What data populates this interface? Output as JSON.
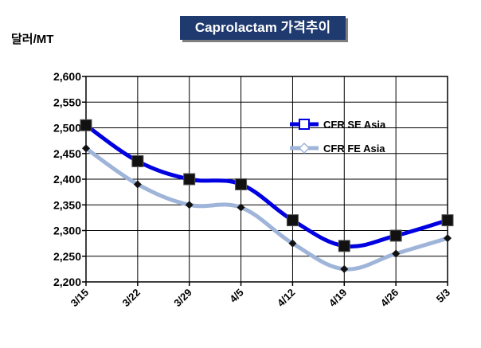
{
  "chart_data": {
    "type": "line",
    "title": "Caprolactam 가격추이",
    "ylabel": "달러/MT",
    "categories": [
      "3/15",
      "3/22",
      "3/29",
      "4/5",
      "4/12",
      "4/19",
      "4/26",
      "5/3"
    ],
    "ylim": [
      2200,
      2600
    ],
    "yticks": [
      2200,
      2250,
      2300,
      2350,
      2400,
      2450,
      2500,
      2550,
      2600
    ],
    "ytick_labels": [
      "2,200",
      "2,250",
      "2,300",
      "2,350",
      "2,400",
      "2,450",
      "2,500",
      "2,550",
      "2,600"
    ],
    "grid": true,
    "legend_position": "top-right",
    "series": [
      {
        "name": "CFR SE Asia",
        "values": [
          2505,
          2435,
          2400,
          2390,
          2320,
          2270,
          2290,
          2320
        ],
        "color": "#0000e0"
      },
      {
        "name": "CFR FE Asia",
        "values": [
          2460,
          2390,
          2350,
          2345,
          2275,
          2225,
          2255,
          2285
        ],
        "color": "#9fb4d9"
      }
    ]
  }
}
